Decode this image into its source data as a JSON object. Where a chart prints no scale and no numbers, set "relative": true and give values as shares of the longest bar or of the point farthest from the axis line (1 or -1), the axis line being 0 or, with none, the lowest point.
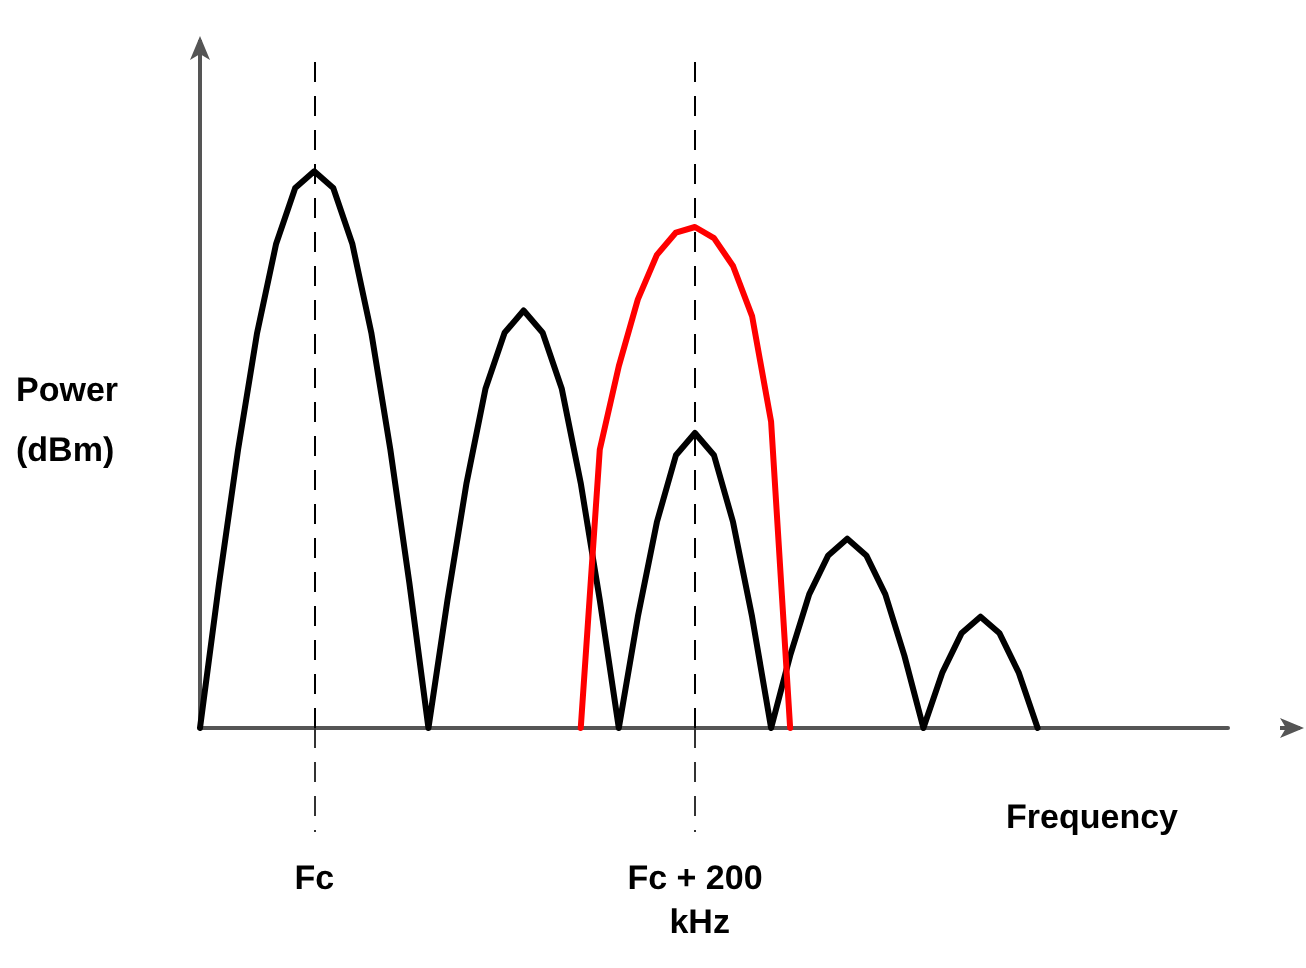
{
  "chart_data": {
    "type": "line",
    "relative": true,
    "xlabel": "Frequency",
    "ylabel": "Power (dBm)",
    "categories": [
      null,
      null,
      null,
      null,
      null,
      null,
      "Fc",
      null,
      null,
      null,
      null,
      null,
      null,
      null,
      null,
      null,
      null,
      null,
      null,
      null,
      null,
      null,
      null,
      null,
      null,
      null,
      "Fc + 200 kHz",
      null,
      null,
      null,
      null,
      null,
      null,
      null,
      null,
      null,
      null,
      null,
      null,
      null,
      null,
      null,
      null,
      null,
      null,
      null,
      null,
      null,
      null,
      null,
      null,
      null,
      null,
      null,
      null
    ],
    "series": [
      {
        "color": "#000000",
        "values": [
          0,
          0.26,
          0.5,
          0.71,
          0.87,
          0.97,
          1,
          0.97,
          0.87,
          0.71,
          0.5,
          0.26,
          0,
          0.23,
          0.44,
          0.61,
          0.71,
          0.75,
          0.71,
          0.61,
          0.44,
          0.23,
          0,
          0.2,
          0.37,
          0.49,
          0.53,
          0.49,
          0.37,
          0.2,
          0,
          0.13,
          0.24,
          0.31,
          0.34,
          0.31,
          0.24,
          0.13,
          0,
          0.1,
          0.17,
          0.2,
          0.17,
          0.1,
          0,
          null,
          null,
          null,
          null,
          null,
          null,
          null,
          null,
          null,
          null
        ]
      },
      {
        "color": "#ff0000",
        "values": [
          null,
          null,
          null,
          null,
          null,
          null,
          null,
          null,
          null,
          null,
          null,
          null,
          null,
          null,
          null,
          null,
          null,
          null,
          null,
          null,
          0,
          0.5,
          0.65,
          0.77,
          0.85,
          0.89,
          0.9,
          0.88,
          0.83,
          0.74,
          0.55,
          0,
          null,
          null,
          null,
          null,
          null,
          null,
          null,
          null,
          null,
          null,
          null,
          null,
          null,
          null,
          null,
          null,
          null,
          null,
          null,
          null,
          null,
          null,
          null
        ]
      }
    ],
    "ref_lines": [
      {
        "axis": "x",
        "value": "Fc",
        "line_style": "dashed"
      },
      {
        "axis": "x",
        "value": "Fc + 200 kHz",
        "line_style": "dashed"
      }
    ],
    "marker": "none",
    "line_style": "solid",
    "grid": false
  }
}
